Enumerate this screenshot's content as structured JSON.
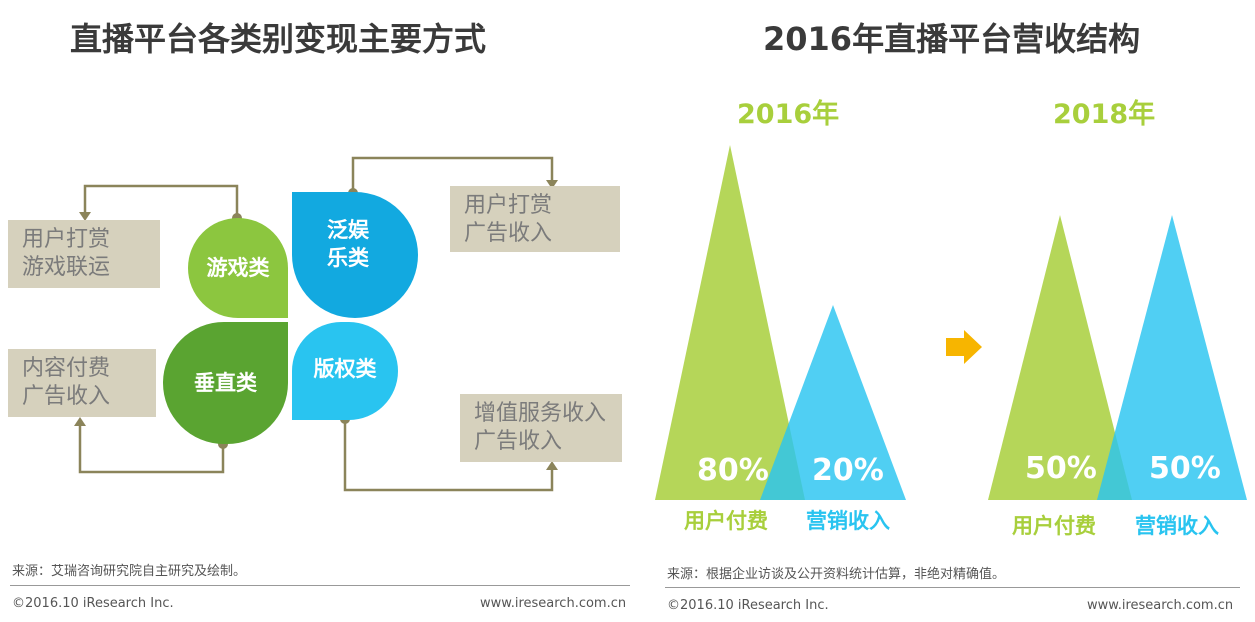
{
  "left": {
    "title": "直播平台各类别变现主要方式",
    "leaves": {
      "game": "游戏类",
      "ent_line1": "泛娱",
      "ent_line2": "乐类",
      "vertical": "垂直类",
      "copyright": "版权类"
    },
    "boxes": {
      "game": [
        "用户打赏",
        "游戏联运"
      ],
      "ent": [
        "用户打赏",
        "广告收入"
      ],
      "vertical": [
        "内容付费",
        "广告收入"
      ],
      "copyright": [
        "增值服务收入",
        "广告收入"
      ]
    },
    "source": "来源：艾瑞咨询研究院自主研究及绘制。",
    "copyright": "©2016.10 iResearch Inc.",
    "website": "www.iresearch.com.cn"
  },
  "right": {
    "title": "2016年直播平台营收结构",
    "source": "来源：根据企业访谈及公开资料统计估算，非绝对精确值。",
    "copyright": "©2016.10 iResearch Inc.",
    "website": "www.iresearch.com.cn"
  },
  "colors": {
    "green": "#a8cf3c",
    "blue": "#29c4f0",
    "arrow": "#f7b500",
    "line": "#8b845a",
    "box": "#d6d1bd"
  },
  "chart_data": [
    {
      "type": "area",
      "year": "2016年",
      "series": [
        {
          "name": "用户付费",
          "value": 80,
          "label": "80%"
        },
        {
          "name": "营销收入",
          "value": 20,
          "label": "20%"
        }
      ]
    },
    {
      "type": "area",
      "year": "2018年",
      "series": [
        {
          "name": "用户付费",
          "value": 50,
          "label": "50%"
        },
        {
          "name": "营销收入",
          "value": 50,
          "label": "50%"
        }
      ]
    }
  ]
}
